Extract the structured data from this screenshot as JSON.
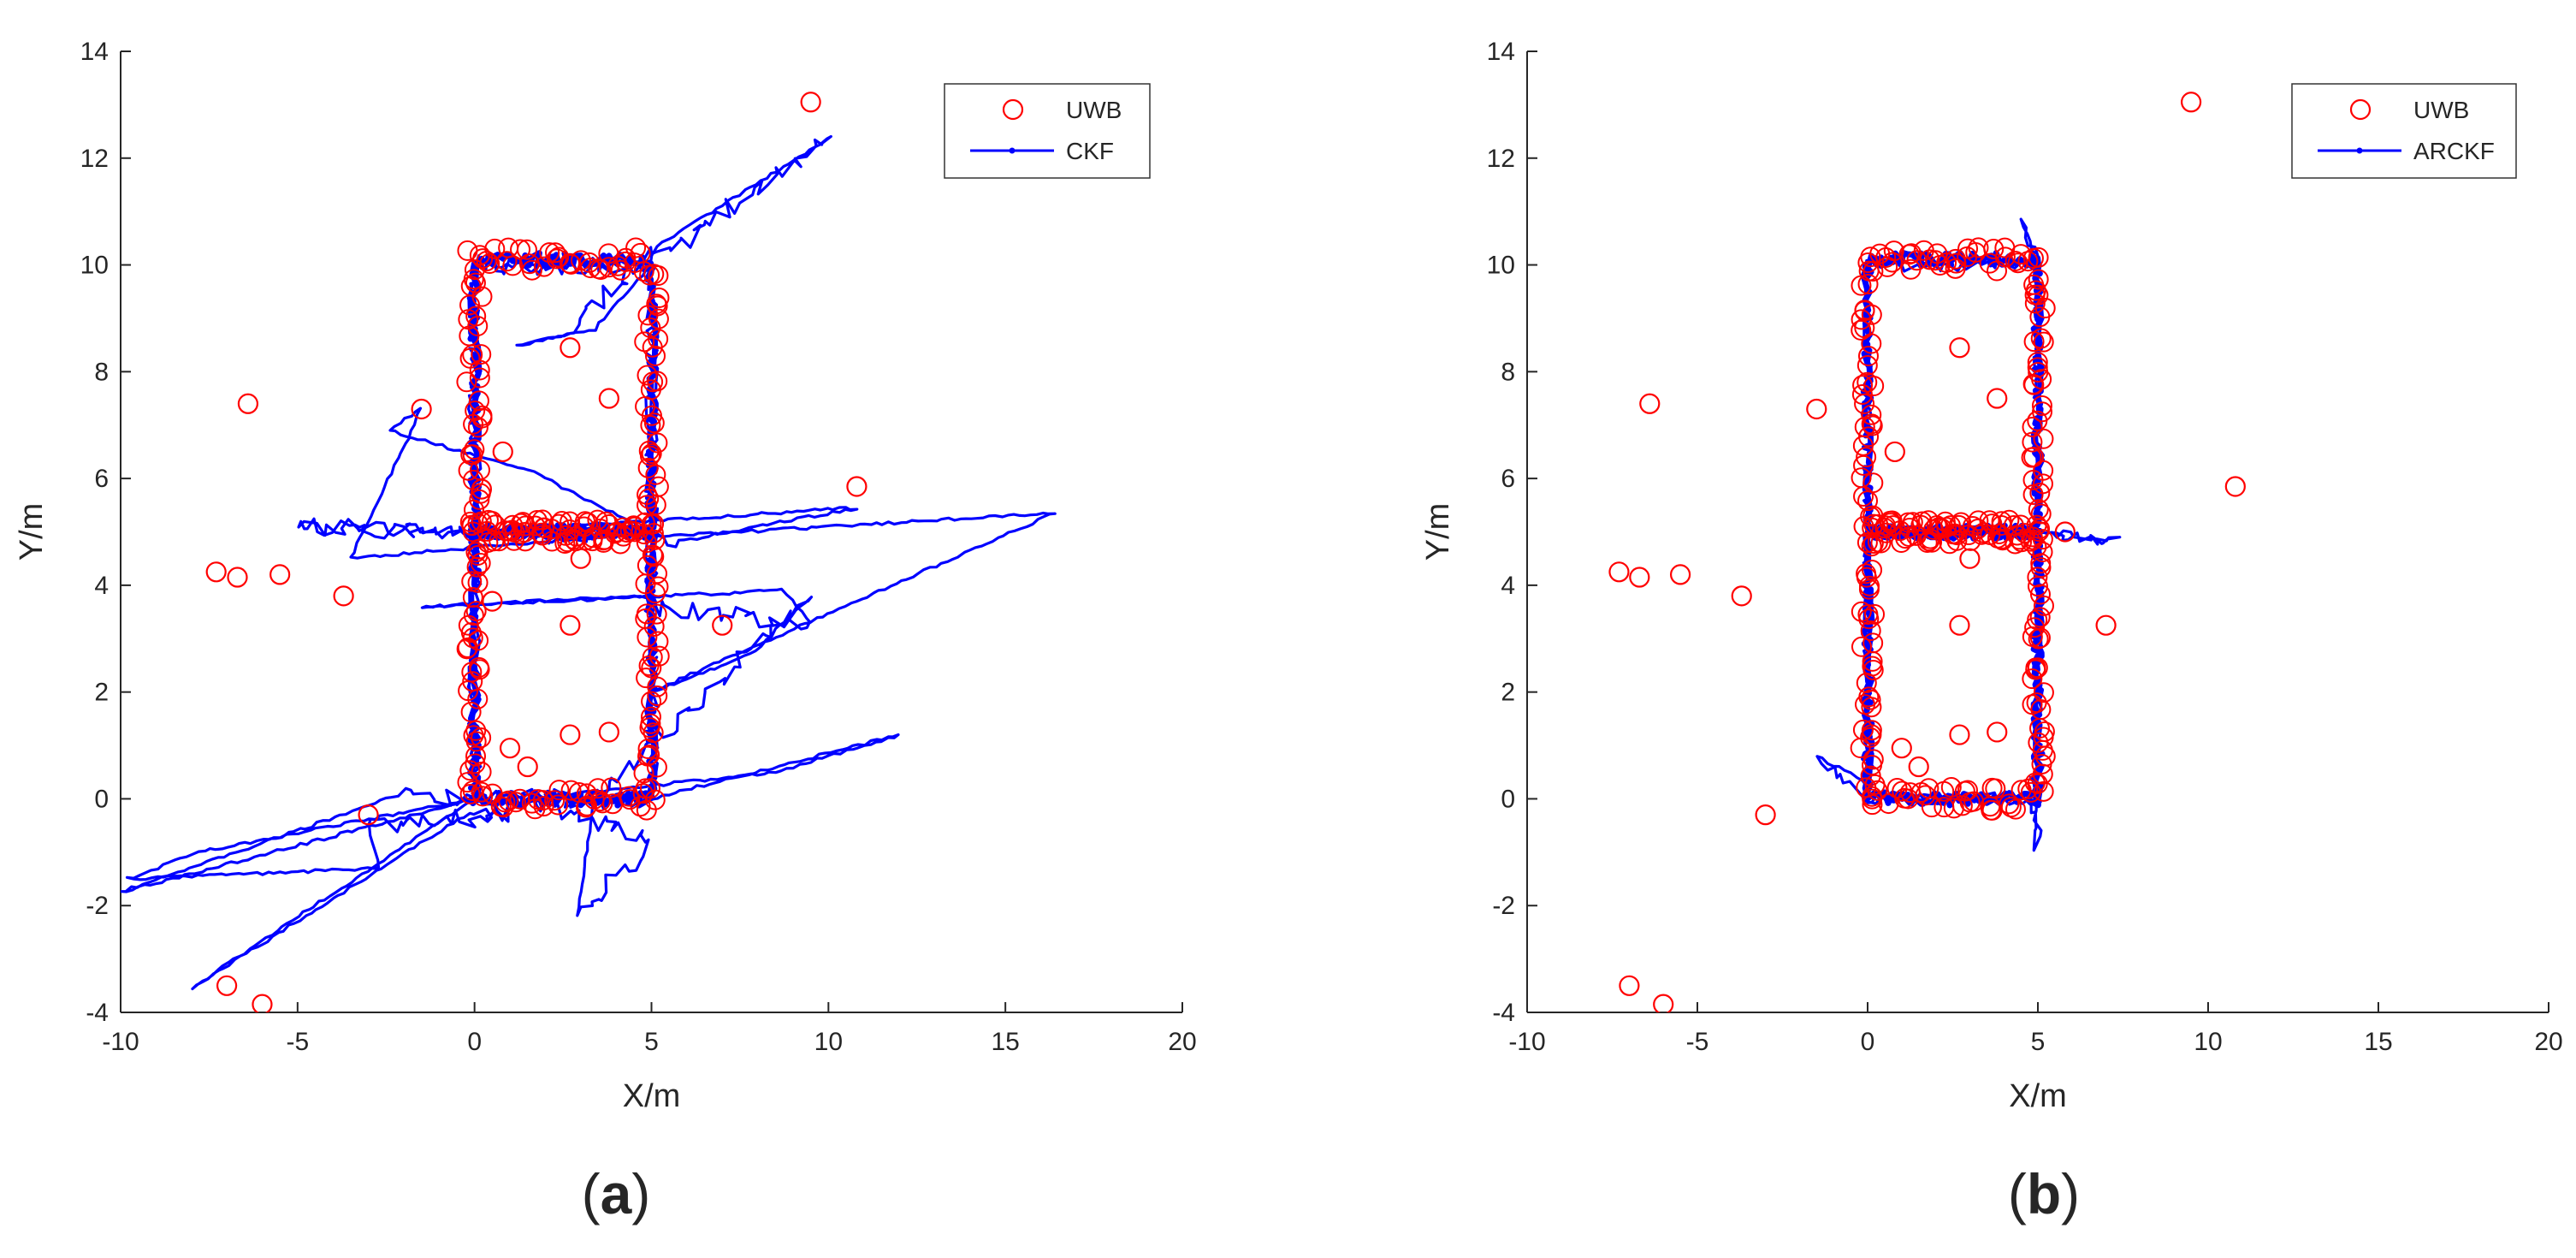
{
  "figure": {
    "panels": [
      {
        "label_prefix": "(",
        "label_letter": "a",
        "label_suffix": ")"
      },
      {
        "label_prefix": "(",
        "label_letter": "b",
        "label_suffix": ")"
      }
    ]
  },
  "colors": {
    "uwb": "#ff0000",
    "filter": "#0000ff",
    "axis": "#262626",
    "frame": "#333333"
  },
  "chart_data": [
    {
      "type": "scatter+line",
      "xlabel": "X/m",
      "ylabel": "Y/m",
      "xlim": [
        -10,
        20
      ],
      "ylim": [
        -4,
        14
      ],
      "xticks": [
        -10,
        -5,
        0,
        5,
        10,
        15,
        20
      ],
      "yticks": [
        -4,
        -2,
        0,
        2,
        4,
        6,
        8,
        10,
        12,
        14
      ],
      "legend": {
        "position": "top-right",
        "entries": [
          "UWB",
          "CKF"
        ]
      },
      "series": [
        {
          "name": "UWB",
          "kind": "scatter-circle",
          "points": [
            [
              9.5,
              13.05
            ],
            [
              -6.4,
              7.4
            ],
            [
              10.8,
              5.85
            ],
            [
              -7.3,
              4.25
            ],
            [
              -6.7,
              4.15
            ],
            [
              -5.5,
              4.2
            ],
            [
              -3.7,
              3.8
            ],
            [
              7.0,
              3.25
            ],
            [
              2.7,
              3.25
            ],
            [
              2.7,
              1.2
            ],
            [
              3.8,
              1.25
            ],
            [
              1.0,
              0.95
            ],
            [
              1.5,
              0.6
            ],
            [
              -3.0,
              -0.3
            ],
            [
              2.7,
              8.45
            ],
            [
              3.8,
              7.5
            ],
            [
              3.0,
              4.5
            ],
            [
              0.8,
              6.5
            ],
            [
              -1.5,
              7.3
            ],
            [
              -7.0,
              -3.5
            ],
            [
              -6.0,
              -3.85
            ],
            [
              0.2,
              5.8
            ],
            [
              0.5,
              3.7
            ]
          ],
          "outline_rects": [
            {
              "x0": 0,
              "y0": 5,
              "x1": 5,
              "y1": 10.1
            },
            {
              "x0": 0,
              "y0": 0,
              "x1": 5,
              "y1": 5
            }
          ]
        },
        {
          "name": "CKF",
          "kind": "line",
          "path": [
            [
              0,
              0
            ],
            [
              0,
              5
            ],
            [
              0,
              10
            ],
            [
              5,
              10
            ],
            [
              5,
              5
            ],
            [
              5,
              0
            ],
            [
              0,
              0
            ],
            [
              -10,
              -1.75
            ],
            [
              -2,
              0.1
            ],
            [
              0,
              0
            ],
            [
              -8,
              -3.55
            ],
            [
              0,
              -0.2
            ],
            [
              1,
              -0.3
            ],
            [
              -3,
              -0.5
            ],
            [
              -2.7,
              -1.3
            ],
            [
              -9.8,
              -1.5
            ],
            [
              -7.8,
              -1.0
            ],
            [
              0,
              0
            ],
            [
              5,
              0
            ],
            [
              12,
              1.2
            ],
            [
              8.5,
              0.5
            ],
            [
              1.5,
              0
            ],
            [
              5,
              -0.8
            ],
            [
              2.9,
              -2.2
            ],
            [
              3.4,
              0
            ],
            [
              5,
              1
            ],
            [
              9.5,
              3.8
            ],
            [
              7.8,
              2.7
            ],
            [
              5,
              2
            ],
            [
              16.4,
              5.35
            ],
            [
              5,
              4.9
            ],
            [
              0,
              5
            ],
            [
              -5,
              5.1
            ],
            [
              0,
              5
            ],
            [
              10.8,
              5.45
            ],
            [
              5.6,
              4.8
            ],
            [
              5,
              5
            ],
            [
              5,
              3.6
            ],
            [
              9.5,
              3.3
            ],
            [
              8.7,
              3.9
            ],
            [
              -1.5,
              3.6
            ],
            [
              5,
              3.8
            ],
            [
              5,
              5
            ],
            [
              -3.5,
              4.5
            ],
            [
              -1.5,
              7.3
            ],
            [
              -2.4,
              6.9
            ],
            [
              1.7,
              6.1
            ],
            [
              5,
              5
            ],
            [
              5,
              10
            ],
            [
              10.1,
              12.4
            ],
            [
              5,
              10.3
            ],
            [
              2.6,
              8.7
            ],
            [
              1.2,
              8.5
            ],
            [
              3.4,
              8.8
            ],
            [
              5,
              10
            ],
            [
              0,
              10
            ],
            [
              0,
              5
            ],
            [
              0,
              0
            ]
          ]
        }
      ]
    },
    {
      "type": "scatter+line",
      "xlabel": "X/m",
      "ylabel": "Y/m",
      "xlim": [
        -10,
        20
      ],
      "ylim": [
        -4,
        14
      ],
      "xticks": [
        -10,
        -5,
        0,
        5,
        10,
        15,
        20
      ],
      "yticks": [
        -4,
        -2,
        0,
        2,
        4,
        6,
        8,
        10,
        12,
        14
      ],
      "legend": {
        "position": "top-right",
        "entries": [
          "UWB",
          "ARCKF"
        ]
      },
      "series": [
        {
          "name": "UWB",
          "kind": "scatter-circle",
          "points": [
            [
              9.5,
              13.05
            ],
            [
              -6.4,
              7.4
            ],
            [
              10.8,
              5.85
            ],
            [
              -7.3,
              4.25
            ],
            [
              -6.7,
              4.15
            ],
            [
              -5.5,
              4.2
            ],
            [
              -3.7,
              3.8
            ],
            [
              7.0,
              3.25
            ],
            [
              2.7,
              3.25
            ],
            [
              2.7,
              1.2
            ],
            [
              3.8,
              1.25
            ],
            [
              1.0,
              0.95
            ],
            [
              1.5,
              0.6
            ],
            [
              -3.0,
              -0.3
            ],
            [
              2.7,
              8.45
            ],
            [
              3.8,
              7.5
            ],
            [
              3.0,
              4.5
            ],
            [
              0.8,
              6.5
            ],
            [
              -1.5,
              7.3
            ],
            [
              -7.0,
              -3.5
            ],
            [
              -6.0,
              -3.85
            ],
            [
              5.8,
              5.0
            ]
          ],
          "outline_rects": [
            {
              "x0": 0,
              "y0": 5,
              "x1": 5,
              "y1": 10.1
            },
            {
              "x0": 0,
              "y0": 0,
              "x1": 5,
              "y1": 5
            }
          ]
        },
        {
          "name": "ARCKF",
          "kind": "line",
          "path": [
            [
              0,
              0
            ],
            [
              0,
              5
            ],
            [
              0,
              10
            ],
            [
              5,
              10
            ],
            [
              5,
              5
            ],
            [
              5,
              0
            ],
            [
              0,
              0
            ],
            [
              0,
              5
            ],
            [
              5,
              5
            ],
            [
              7.3,
              4.8
            ],
            [
              5,
              5
            ],
            [
              5,
              -0.85
            ],
            [
              4.8,
              0.5
            ],
            [
              5,
              0
            ],
            [
              0,
              0
            ],
            [
              -1.5,
              0.8
            ],
            [
              0,
              0.3
            ],
            [
              0,
              5
            ],
            [
              5,
              5
            ],
            [
              5,
              10
            ],
            [
              4.5,
              10.85
            ],
            [
              5,
              10
            ]
          ]
        }
      ]
    }
  ]
}
